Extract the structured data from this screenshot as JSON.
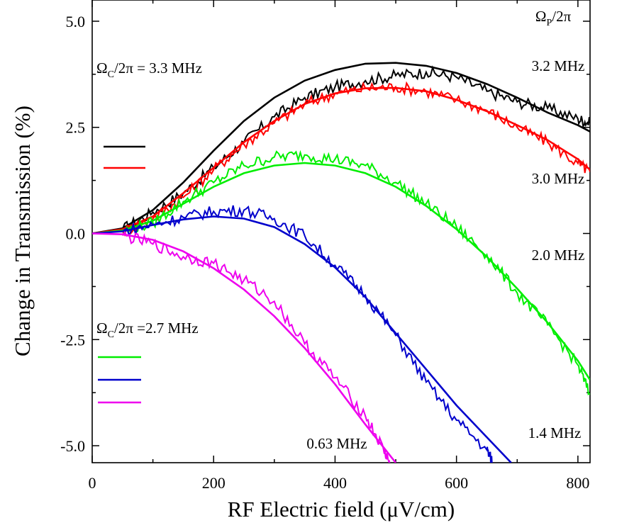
{
  "chart_data": {
    "type": "line",
    "xlabel": "RF Electric field (μV/cm)",
    "ylabel": "Change in Transmission (%)",
    "xlim": [
      0,
      820
    ],
    "ylim": [
      -5.4,
      5.5
    ],
    "x_ticks_major": [
      0,
      200,
      400,
      600,
      800
    ],
    "x_ticks_minor": [
      100,
      300,
      500,
      700
    ],
    "y_ticks_major": [
      -5.0,
      -2.5,
      0.0,
      2.5,
      5.0
    ],
    "y_ticks_minor": [
      -3.75,
      -1.25,
      1.25,
      3.75
    ],
    "x_tick_labels": [
      "0",
      "200",
      "400",
      "600",
      "800"
    ],
    "y_tick_labels": [
      "-5.0",
      "-2.5",
      "0.0",
      "2.5",
      "5.0"
    ],
    "legend_header": "Ω_P/2π",
    "groups": [
      {
        "label": "Ω_C/2π =  3.3 MHz",
        "colors": [
          "#000000",
          "#ff0000"
        ]
      },
      {
        "label": "Ω_C/2π =2.7 MHz",
        "colors": [
          "#00ee00",
          "#0000cc",
          "#ee00ee"
        ]
      }
    ],
    "series": [
      {
        "name": "3.2 MHz",
        "color": "#000000",
        "fit": [
          [
            0,
            0
          ],
          [
            50,
            0.12
          ],
          [
            100,
            0.55
          ],
          [
            150,
            1.2
          ],
          [
            200,
            1.95
          ],
          [
            250,
            2.65
          ],
          [
            300,
            3.2
          ],
          [
            350,
            3.6
          ],
          [
            400,
            3.85
          ],
          [
            450,
            4.0
          ],
          [
            500,
            4.02
          ],
          [
            550,
            3.95
          ],
          [
            600,
            3.78
          ],
          [
            650,
            3.52
          ],
          [
            700,
            3.2
          ],
          [
            750,
            2.85
          ],
          [
            800,
            2.55
          ],
          [
            820,
            2.4
          ]
        ],
        "measured": [
          [
            50,
            0.1
          ],
          [
            100,
            0.5
          ],
          [
            150,
            0.95
          ],
          [
            200,
            1.55
          ],
          [
            250,
            2.15
          ],
          [
            300,
            2.75
          ],
          [
            350,
            3.2
          ],
          [
            400,
            3.45
          ],
          [
            450,
            3.6
          ],
          [
            500,
            3.72
          ],
          [
            550,
            3.8
          ],
          [
            600,
            3.68
          ],
          [
            650,
            3.35
          ],
          [
            700,
            3.1
          ],
          [
            750,
            2.95
          ],
          [
            800,
            2.7
          ],
          [
            820,
            2.6
          ]
        ]
      },
      {
        "name": "3.0 MHz",
        "color": "#ff0000",
        "fit": [
          [
            0,
            0
          ],
          [
            50,
            0.1
          ],
          [
            100,
            0.4
          ],
          [
            150,
            0.95
          ],
          [
            200,
            1.55
          ],
          [
            250,
            2.15
          ],
          [
            300,
            2.65
          ],
          [
            350,
            3.05
          ],
          [
            400,
            3.3
          ],
          [
            450,
            3.42
          ],
          [
            500,
            3.43
          ],
          [
            550,
            3.35
          ],
          [
            600,
            3.15
          ],
          [
            650,
            2.88
          ],
          [
            700,
            2.55
          ],
          [
            750,
            2.2
          ],
          [
            800,
            1.75
          ],
          [
            820,
            1.5
          ]
        ],
        "measured": [
          [
            50,
            0.05
          ],
          [
            100,
            0.35
          ],
          [
            150,
            0.85
          ],
          [
            200,
            1.5
          ],
          [
            250,
            2.1
          ],
          [
            300,
            2.6
          ],
          [
            350,
            3.05
          ],
          [
            400,
            3.3
          ],
          [
            450,
            3.42
          ],
          [
            500,
            3.45
          ],
          [
            550,
            3.35
          ],
          [
            600,
            3.15
          ],
          [
            650,
            2.9
          ],
          [
            700,
            2.5
          ],
          [
            750,
            2.15
          ],
          [
            800,
            1.65
          ],
          [
            820,
            1.45
          ]
        ]
      },
      {
        "name": "2.0 MHz",
        "color": "#00ee00",
        "fit": [
          [
            0,
            0
          ],
          [
            50,
            0.07
          ],
          [
            100,
            0.3
          ],
          [
            150,
            0.7
          ],
          [
            200,
            1.1
          ],
          [
            250,
            1.42
          ],
          [
            300,
            1.6
          ],
          [
            350,
            1.66
          ],
          [
            400,
            1.6
          ],
          [
            450,
            1.42
          ],
          [
            500,
            1.1
          ],
          [
            550,
            0.65
          ],
          [
            600,
            0.1
          ],
          [
            650,
            -0.55
          ],
          [
            700,
            -1.3
          ],
          [
            750,
            -2.1
          ],
          [
            800,
            -3.0
          ],
          [
            820,
            -3.45
          ]
        ],
        "measured": [
          [
            50,
            0.05
          ],
          [
            100,
            0.25
          ],
          [
            150,
            0.75
          ],
          [
            200,
            1.2
          ],
          [
            250,
            1.6
          ],
          [
            300,
            1.8
          ],
          [
            350,
            1.85
          ],
          [
            400,
            1.75
          ],
          [
            450,
            1.6
          ],
          [
            500,
            1.2
          ],
          [
            550,
            0.7
          ],
          [
            600,
            0.15
          ],
          [
            650,
            -0.5
          ],
          [
            700,
            -1.4
          ],
          [
            750,
            -2.15
          ],
          [
            800,
            -3.1
          ],
          [
            820,
            -3.8
          ]
        ]
      },
      {
        "name": "1.4 MHz",
        "color": "#0000cc",
        "fit": [
          [
            0,
            0
          ],
          [
            50,
            0.05
          ],
          [
            100,
            0.2
          ],
          [
            150,
            0.33
          ],
          [
            200,
            0.4
          ],
          [
            250,
            0.35
          ],
          [
            300,
            0.15
          ],
          [
            350,
            -0.25
          ],
          [
            400,
            -0.8
          ],
          [
            450,
            -1.5
          ],
          [
            500,
            -2.35
          ],
          [
            550,
            -3.2
          ],
          [
            600,
            -4.05
          ],
          [
            650,
            -4.8
          ],
          [
            690,
            -5.4
          ]
        ],
        "measured": [
          [
            50,
            0.05
          ],
          [
            100,
            0.2
          ],
          [
            150,
            0.38
          ],
          [
            200,
            0.52
          ],
          [
            250,
            0.55
          ],
          [
            300,
            0.35
          ],
          [
            350,
            -0.05
          ],
          [
            400,
            -0.75
          ],
          [
            450,
            -1.45
          ],
          [
            500,
            -2.4
          ],
          [
            550,
            -3.5
          ],
          [
            600,
            -4.4
          ],
          [
            650,
            -5.1
          ],
          [
            660,
            -5.4
          ]
        ]
      },
      {
        "name": "0.63 MHz",
        "color": "#ee00ee",
        "fit": [
          [
            0,
            0
          ],
          [
            50,
            -0.02
          ],
          [
            100,
            -0.15
          ],
          [
            150,
            -0.42
          ],
          [
            200,
            -0.82
          ],
          [
            250,
            -1.32
          ],
          [
            300,
            -1.95
          ],
          [
            350,
            -2.7
          ],
          [
            400,
            -3.55
          ],
          [
            450,
            -4.5
          ],
          [
            500,
            -5.4
          ]
        ],
        "measured": [
          [
            50,
            -0.05
          ],
          [
            100,
            -0.25
          ],
          [
            150,
            -0.55
          ],
          [
            200,
            -0.7
          ],
          [
            250,
            -1.1
          ],
          [
            300,
            -1.6
          ],
          [
            350,
            -2.6
          ],
          [
            400,
            -3.4
          ],
          [
            450,
            -4.3
          ],
          [
            480,
            -5.1
          ],
          [
            490,
            -5.4
          ]
        ]
      }
    ]
  }
}
